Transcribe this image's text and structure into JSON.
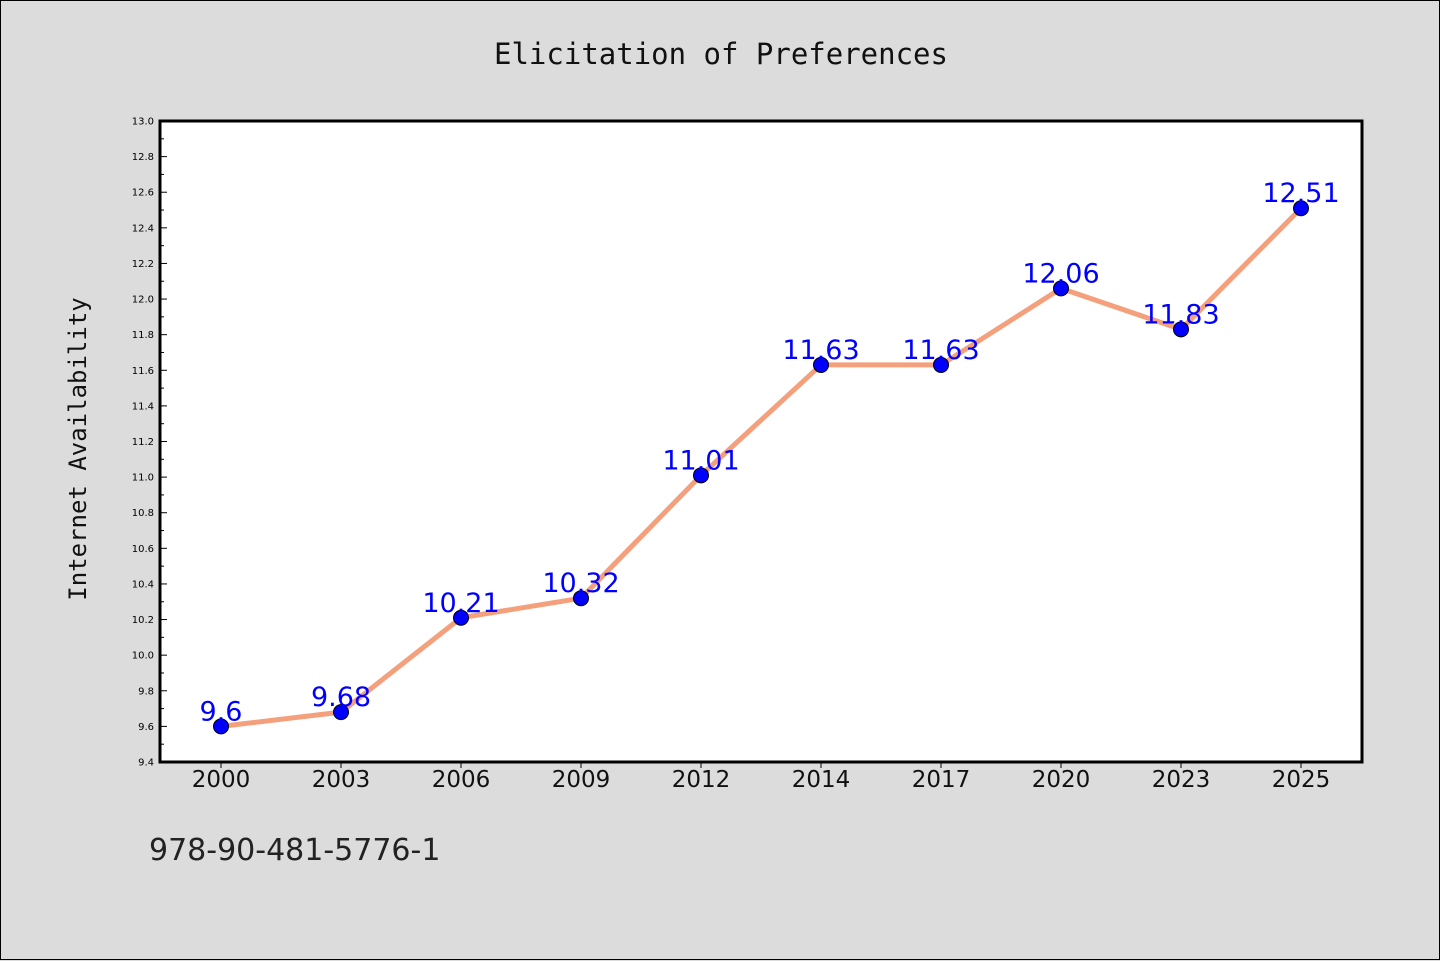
{
  "chart_data": {
    "type": "line",
    "title": "Elicitation of Preferences",
    "xlabel": "",
    "ylabel": "Internet Availability",
    "categories": [
      "2000",
      "2003",
      "2006",
      "2009",
      "2012",
      "2014",
      "2017",
      "2020",
      "2023",
      "2025"
    ],
    "series": [
      {
        "values": [
          9.6,
          9.68,
          10.21,
          10.32,
          11.01,
          11.63,
          11.63,
          12.06,
          11.83,
          12.51
        ],
        "labels": [
          "9.6",
          "9.68",
          "10.21",
          "10.32",
          "11.01",
          "11.63",
          "11.63",
          "12.06",
          "11.83",
          "12.51"
        ]
      }
    ],
    "ylim": [
      9.4,
      13.0
    ],
    "yticks": [
      "9.4",
      "9.6",
      "9.8",
      "10.0",
      "10.2",
      "10.4",
      "10.6",
      "10.8",
      "11.0",
      "11.2",
      "11.4",
      "11.6",
      "11.8",
      "12.0",
      "12.2",
      "12.4",
      "12.6",
      "12.8",
      "13.0"
    ],
    "grid": false,
    "colors": {
      "line": "#f4a07c",
      "marker": "#0000ff",
      "label": "#0000ff",
      "background": "#dcdcdc",
      "plot_background": "#ffffff"
    }
  },
  "footer": {
    "code": "978-90-481-5776-1"
  }
}
